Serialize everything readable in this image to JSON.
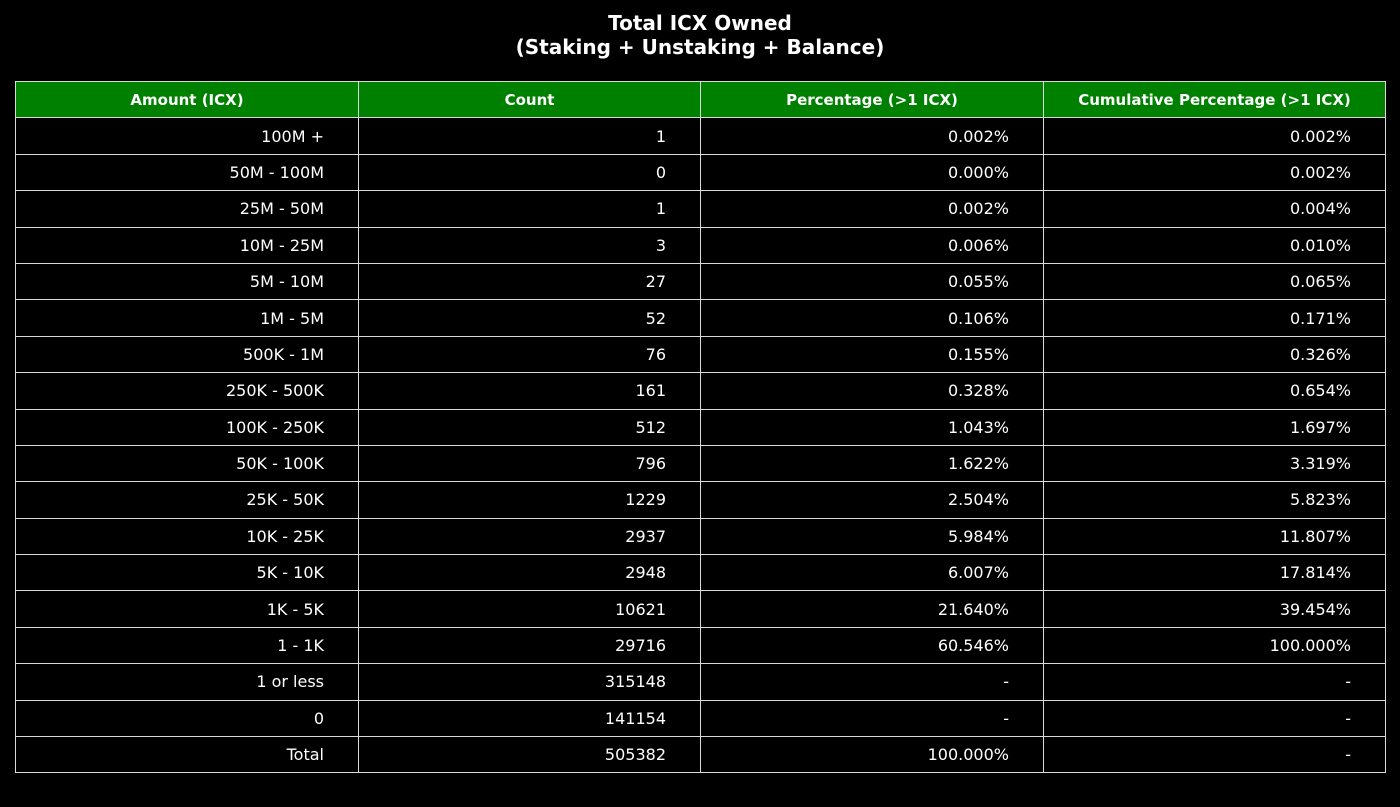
{
  "chart_data": {
    "type": "table",
    "title": "Total ICX Owned",
    "subtitle": "(Staking + Unstaking + Balance)",
    "header_color": "#008000",
    "columns": [
      "Amount (ICX)",
      "Count",
      "Percentage (>1 ICX)",
      "Cumulative Percentage (>1 ICX)"
    ],
    "rows": [
      [
        "100M +",
        "1",
        "0.002%",
        "0.002%"
      ],
      [
        "50M - 100M",
        "0",
        "0.000%",
        "0.002%"
      ],
      [
        "25M - 50M",
        "1",
        "0.002%",
        "0.004%"
      ],
      [
        "10M - 25M",
        "3",
        "0.006%",
        "0.010%"
      ],
      [
        "5M - 10M",
        "27",
        "0.055%",
        "0.065%"
      ],
      [
        "1M - 5M",
        "52",
        "0.106%",
        "0.171%"
      ],
      [
        "500K - 1M",
        "76",
        "0.155%",
        "0.326%"
      ],
      [
        "250K - 500K",
        "161",
        "0.328%",
        "0.654%"
      ],
      [
        "100K - 250K",
        "512",
        "1.043%",
        "1.697%"
      ],
      [
        "50K - 100K",
        "796",
        "1.622%",
        "3.319%"
      ],
      [
        "25K - 50K",
        "1229",
        "2.504%",
        "5.823%"
      ],
      [
        "10K - 25K",
        "2937",
        "5.984%",
        "11.807%"
      ],
      [
        "5K - 10K",
        "2948",
        "6.007%",
        "17.814%"
      ],
      [
        "1K - 5K",
        "10621",
        "21.640%",
        "39.454%"
      ],
      [
        "1 - 1K",
        "29716",
        "60.546%",
        "100.000%"
      ],
      [
        "1 or less",
        "315148",
        "-",
        "-"
      ],
      [
        "0",
        "141154",
        "-",
        "-"
      ],
      [
        "Total",
        "505382",
        "100.000%",
        "-"
      ]
    ]
  }
}
